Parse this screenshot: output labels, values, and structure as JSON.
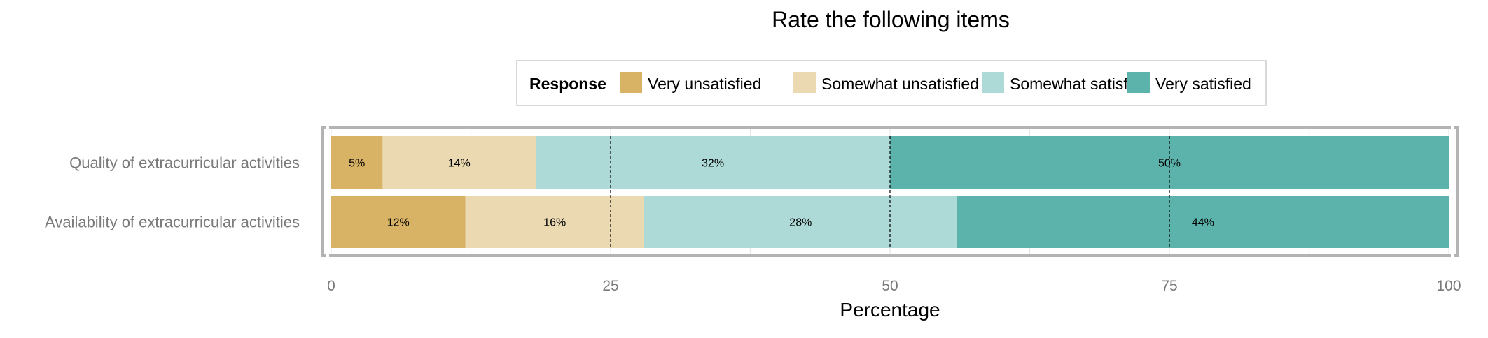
{
  "chart_data": {
    "type": "bar",
    "orientation": "horizontal",
    "stacked": true,
    "title": "Rate the following items",
    "xlabel": "Percentage",
    "ylabel": "",
    "xlim": [
      0,
      100
    ],
    "x_ticks": [
      0,
      25,
      50,
      75,
      100
    ],
    "grid": true,
    "reference_lines": [
      25,
      50,
      75
    ],
    "legend": {
      "title": "Response",
      "position": "top"
    },
    "categories": [
      "Quality of extracurricular activities",
      "Availability of extracurricular activities"
    ],
    "series": [
      {
        "name": "Very unsatisfied",
        "color": "#D9B365",
        "values": [
          4.6,
          12.0
        ],
        "labels": [
          "5%",
          "12%"
        ]
      },
      {
        "name": "Somewhat unsatisfied",
        "color": "#EBD9B2",
        "values": [
          13.7,
          16.0
        ],
        "labels": [
          "14%",
          "16%"
        ]
      },
      {
        "name": "Somewhat satisfied",
        "color": "#ADD9D6",
        "values": [
          31.7,
          28.0
        ],
        "labels": [
          "32%",
          "28%"
        ]
      },
      {
        "name": "Very satisfied",
        "color": "#5BB3AB",
        "values": [
          50.0,
          44.0
        ],
        "labels": [
          "50%",
          "44%"
        ]
      }
    ]
  }
}
